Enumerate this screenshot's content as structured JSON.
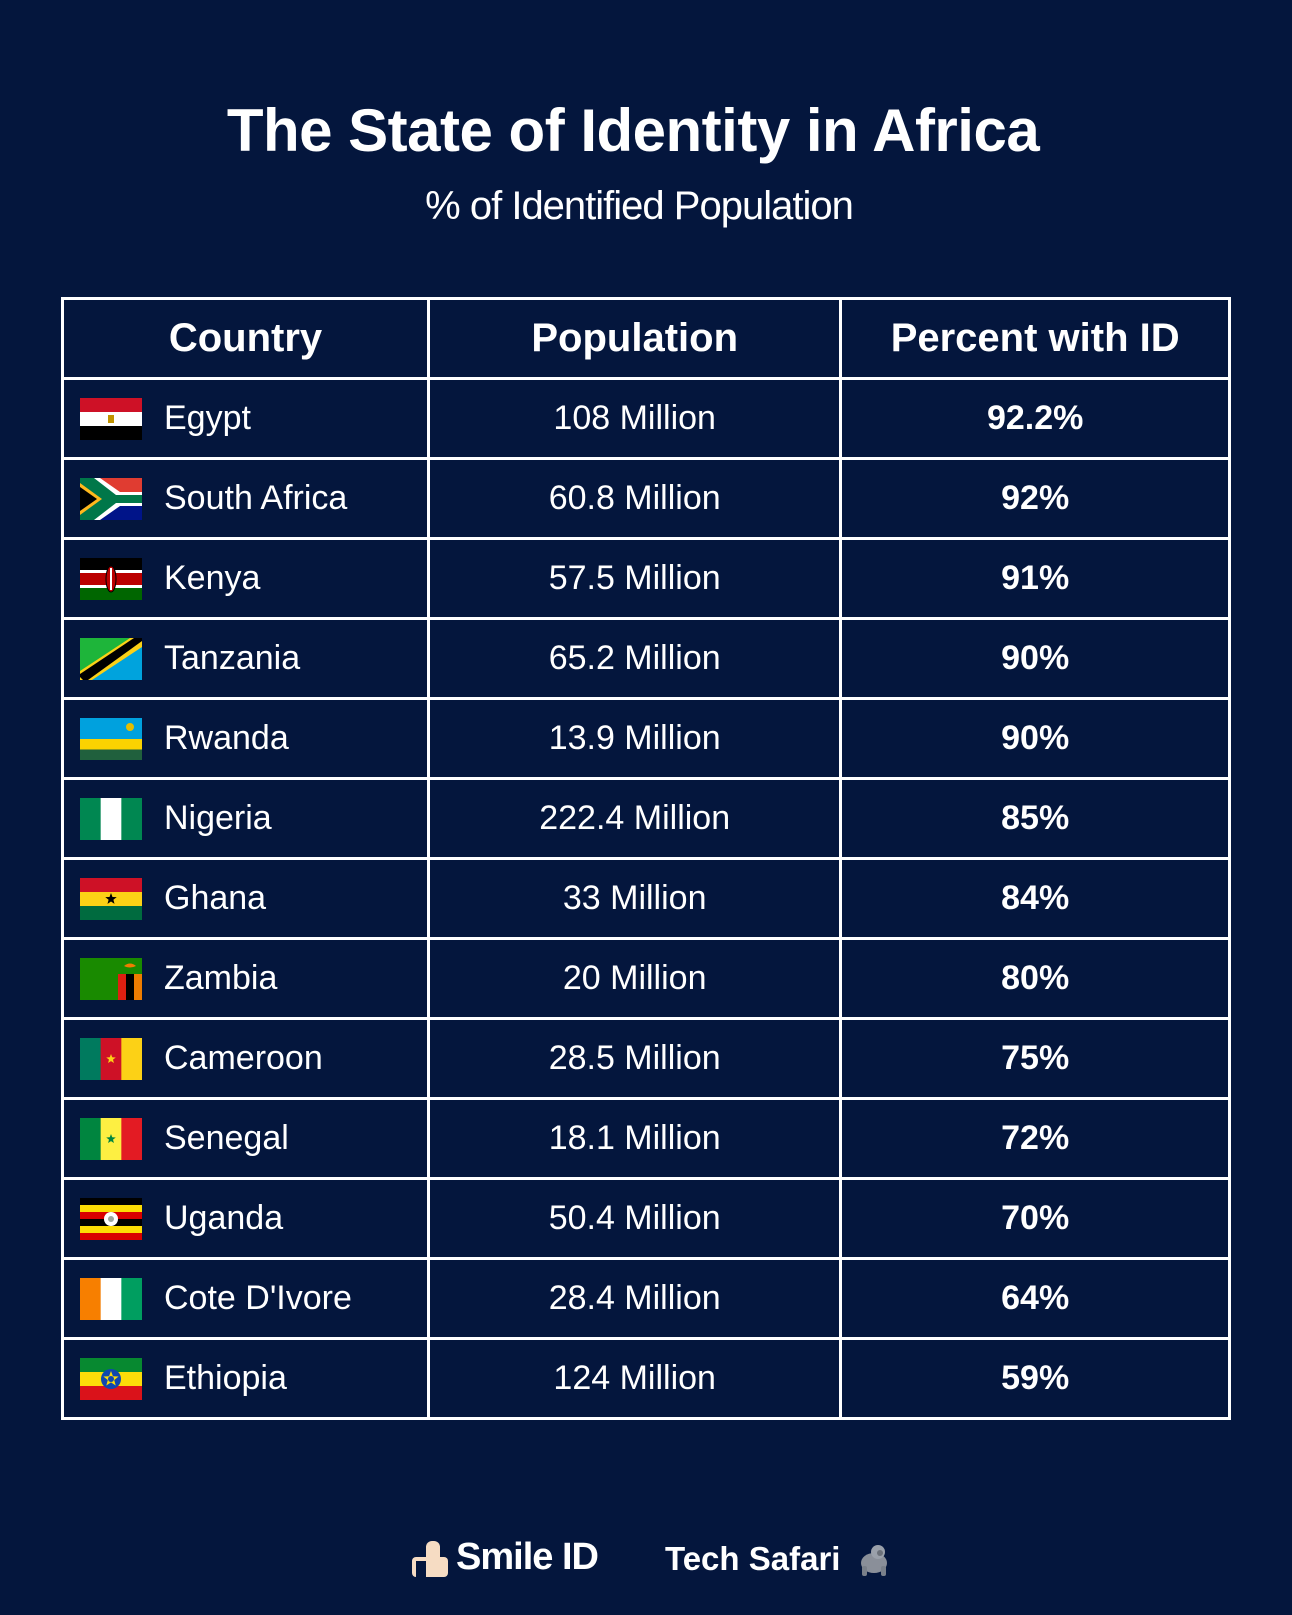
{
  "title": "The State of Identity in Africa",
  "subtitle": "% of Identified Population",
  "colors": {
    "background": "#04163d",
    "text": "#ffffff",
    "grid": "#ffffff"
  },
  "chart_data": {
    "type": "table",
    "title": "The State of Identity in Africa",
    "subtitle": "% of Identified Population",
    "columns": [
      "Country",
      "Population",
      "Percent with ID"
    ],
    "rows": [
      {
        "country": "Egypt",
        "population": "108 Million",
        "percent": "92.2%",
        "flag": "egypt-flag-icon"
      },
      {
        "country": "South Africa",
        "population": "60.8 Million",
        "percent": "92%",
        "flag": "south-africa-flag-icon"
      },
      {
        "country": "Kenya",
        "population": "57.5 Million",
        "percent": "91%",
        "flag": "kenya-flag-icon"
      },
      {
        "country": "Tanzania",
        "population": "65.2 Million",
        "percent": "90%",
        "flag": "tanzania-flag-icon"
      },
      {
        "country": "Rwanda",
        "population": "13.9 Million",
        "percent": "90%",
        "flag": "rwanda-flag-icon"
      },
      {
        "country": "Nigeria",
        "population": "222.4 Million",
        "percent": "85%",
        "flag": "nigeria-flag-icon"
      },
      {
        "country": "Ghana",
        "population": "33 Million",
        "percent": "84%",
        "flag": "ghana-flag-icon"
      },
      {
        "country": "Zambia",
        "population": "20 Million",
        "percent": "80%",
        "flag": "zambia-flag-icon"
      },
      {
        "country": "Cameroon",
        "population": "28.5 Million",
        "percent": "75%",
        "flag": "cameroon-flag-icon"
      },
      {
        "country": "Senegal",
        "population": "18.1 Million",
        "percent": "72%",
        "flag": "senegal-flag-icon"
      },
      {
        "country": "Uganda",
        "population": "50.4 Million",
        "percent": "70%",
        "flag": "uganda-flag-icon"
      },
      {
        "country": "Cote D'Ivore",
        "population": "28.4 Million",
        "percent": "64%",
        "flag": "cote-divoire-flag-icon"
      },
      {
        "country": "Ethiopia",
        "population": "124 Million",
        "percent": "59%",
        "flag": "ethiopia-flag-icon"
      }
    ]
  },
  "footer": {
    "brand1": "Smile ID",
    "brand1_icon": "smile-id-logo-icon",
    "brand2": "Tech Safari",
    "brand2_icon": "gorilla-icon"
  }
}
